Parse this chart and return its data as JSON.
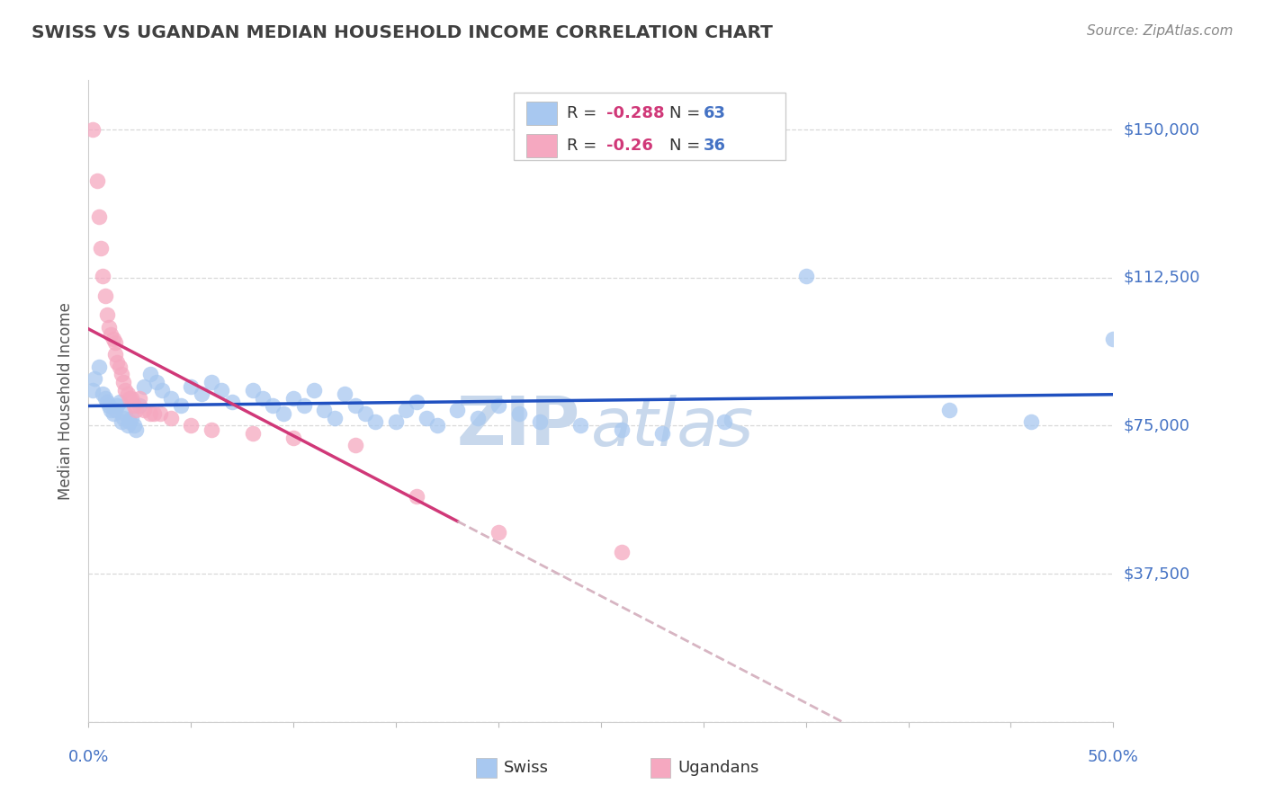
{
  "title": "SWISS VS UGANDAN MEDIAN HOUSEHOLD INCOME CORRELATION CHART",
  "source": "Source: ZipAtlas.com",
  "ylabel": "Median Household Income",
  "yticks": [
    0,
    37500,
    75000,
    112500,
    150000
  ],
  "ytick_labels": [
    "",
    "$37,500",
    "$75,000",
    "$112,500",
    "$150,000"
  ],
  "xmin": 0.0,
  "xmax": 0.5,
  "ymin": 0,
  "ymax": 162500,
  "swiss_color": "#A8C8F0",
  "ugandan_color": "#F5A8C0",
  "swiss_line_color": "#2050C0",
  "ugandan_line_color": "#D03878",
  "dashed_line_color": "#D0A8B8",
  "swiss_R": -0.288,
  "swiss_N": 63,
  "ugandan_R": -0.26,
  "ugandan_N": 36,
  "swiss_x": [
    0.002,
    0.003,
    0.005,
    0.007,
    0.008,
    0.009,
    0.01,
    0.011,
    0.012,
    0.013,
    0.014,
    0.015,
    0.016,
    0.017,
    0.018,
    0.019,
    0.02,
    0.021,
    0.022,
    0.023,
    0.025,
    0.027,
    0.03,
    0.033,
    0.036,
    0.04,
    0.045,
    0.05,
    0.055,
    0.06,
    0.065,
    0.07,
    0.08,
    0.085,
    0.09,
    0.095,
    0.1,
    0.105,
    0.11,
    0.115,
    0.12,
    0.125,
    0.13,
    0.135,
    0.14,
    0.15,
    0.155,
    0.16,
    0.165,
    0.17,
    0.18,
    0.19,
    0.2,
    0.21,
    0.22,
    0.24,
    0.26,
    0.28,
    0.31,
    0.35,
    0.42,
    0.46,
    0.5
  ],
  "swiss_y": [
    84000,
    87000,
    90000,
    83000,
    82000,
    81000,
    80000,
    79000,
    78000,
    79000,
    80000,
    81000,
    76000,
    77000,
    78000,
    75000,
    76000,
    77000,
    75000,
    74000,
    80000,
    85000,
    88000,
    86000,
    84000,
    82000,
    80000,
    85000,
    83000,
    86000,
    84000,
    81000,
    84000,
    82000,
    80000,
    78000,
    82000,
    80000,
    84000,
    79000,
    77000,
    83000,
    80000,
    78000,
    76000,
    76000,
    79000,
    81000,
    77000,
    75000,
    79000,
    77000,
    80000,
    78000,
    76000,
    75000,
    74000,
    73000,
    76000,
    113000,
    79000,
    76000,
    97000
  ],
  "ugandan_x": [
    0.002,
    0.004,
    0.005,
    0.006,
    0.007,
    0.008,
    0.009,
    0.01,
    0.011,
    0.012,
    0.013,
    0.013,
    0.014,
    0.015,
    0.016,
    0.017,
    0.018,
    0.019,
    0.02,
    0.021,
    0.022,
    0.023,
    0.025,
    0.027,
    0.03,
    0.032,
    0.035,
    0.04,
    0.05,
    0.06,
    0.08,
    0.1,
    0.13,
    0.16,
    0.2,
    0.26
  ],
  "ugandan_y": [
    150000,
    137000,
    128000,
    120000,
    113000,
    108000,
    103000,
    100000,
    98000,
    97000,
    96000,
    93000,
    91000,
    90000,
    88000,
    86000,
    84000,
    83000,
    82000,
    82000,
    80000,
    79000,
    82000,
    79000,
    78000,
    78000,
    78000,
    77000,
    75000,
    74000,
    73000,
    72000,
    70000,
    57000,
    48000,
    43000
  ],
  "watermark_line1": "ZIP",
  "watermark_line2": "atlas",
  "watermark_color": "#C8D8EC",
  "background_color": "#FFFFFF",
  "grid_color": "#D8D8D8",
  "title_color": "#404040",
  "axis_label_color": "#4472C4",
  "r_text_color": "#333333",
  "r_value_color": "#D03878",
  "n_text_color": "#333333",
  "n_value_color": "#4472C4",
  "source_color": "#888888",
  "ylabel_color": "#555555",
  "bottom_legend_text_color": "#333333",
  "legend_border_color": "#CCCCCC",
  "swatch_border_color": "#BBBBBB"
}
